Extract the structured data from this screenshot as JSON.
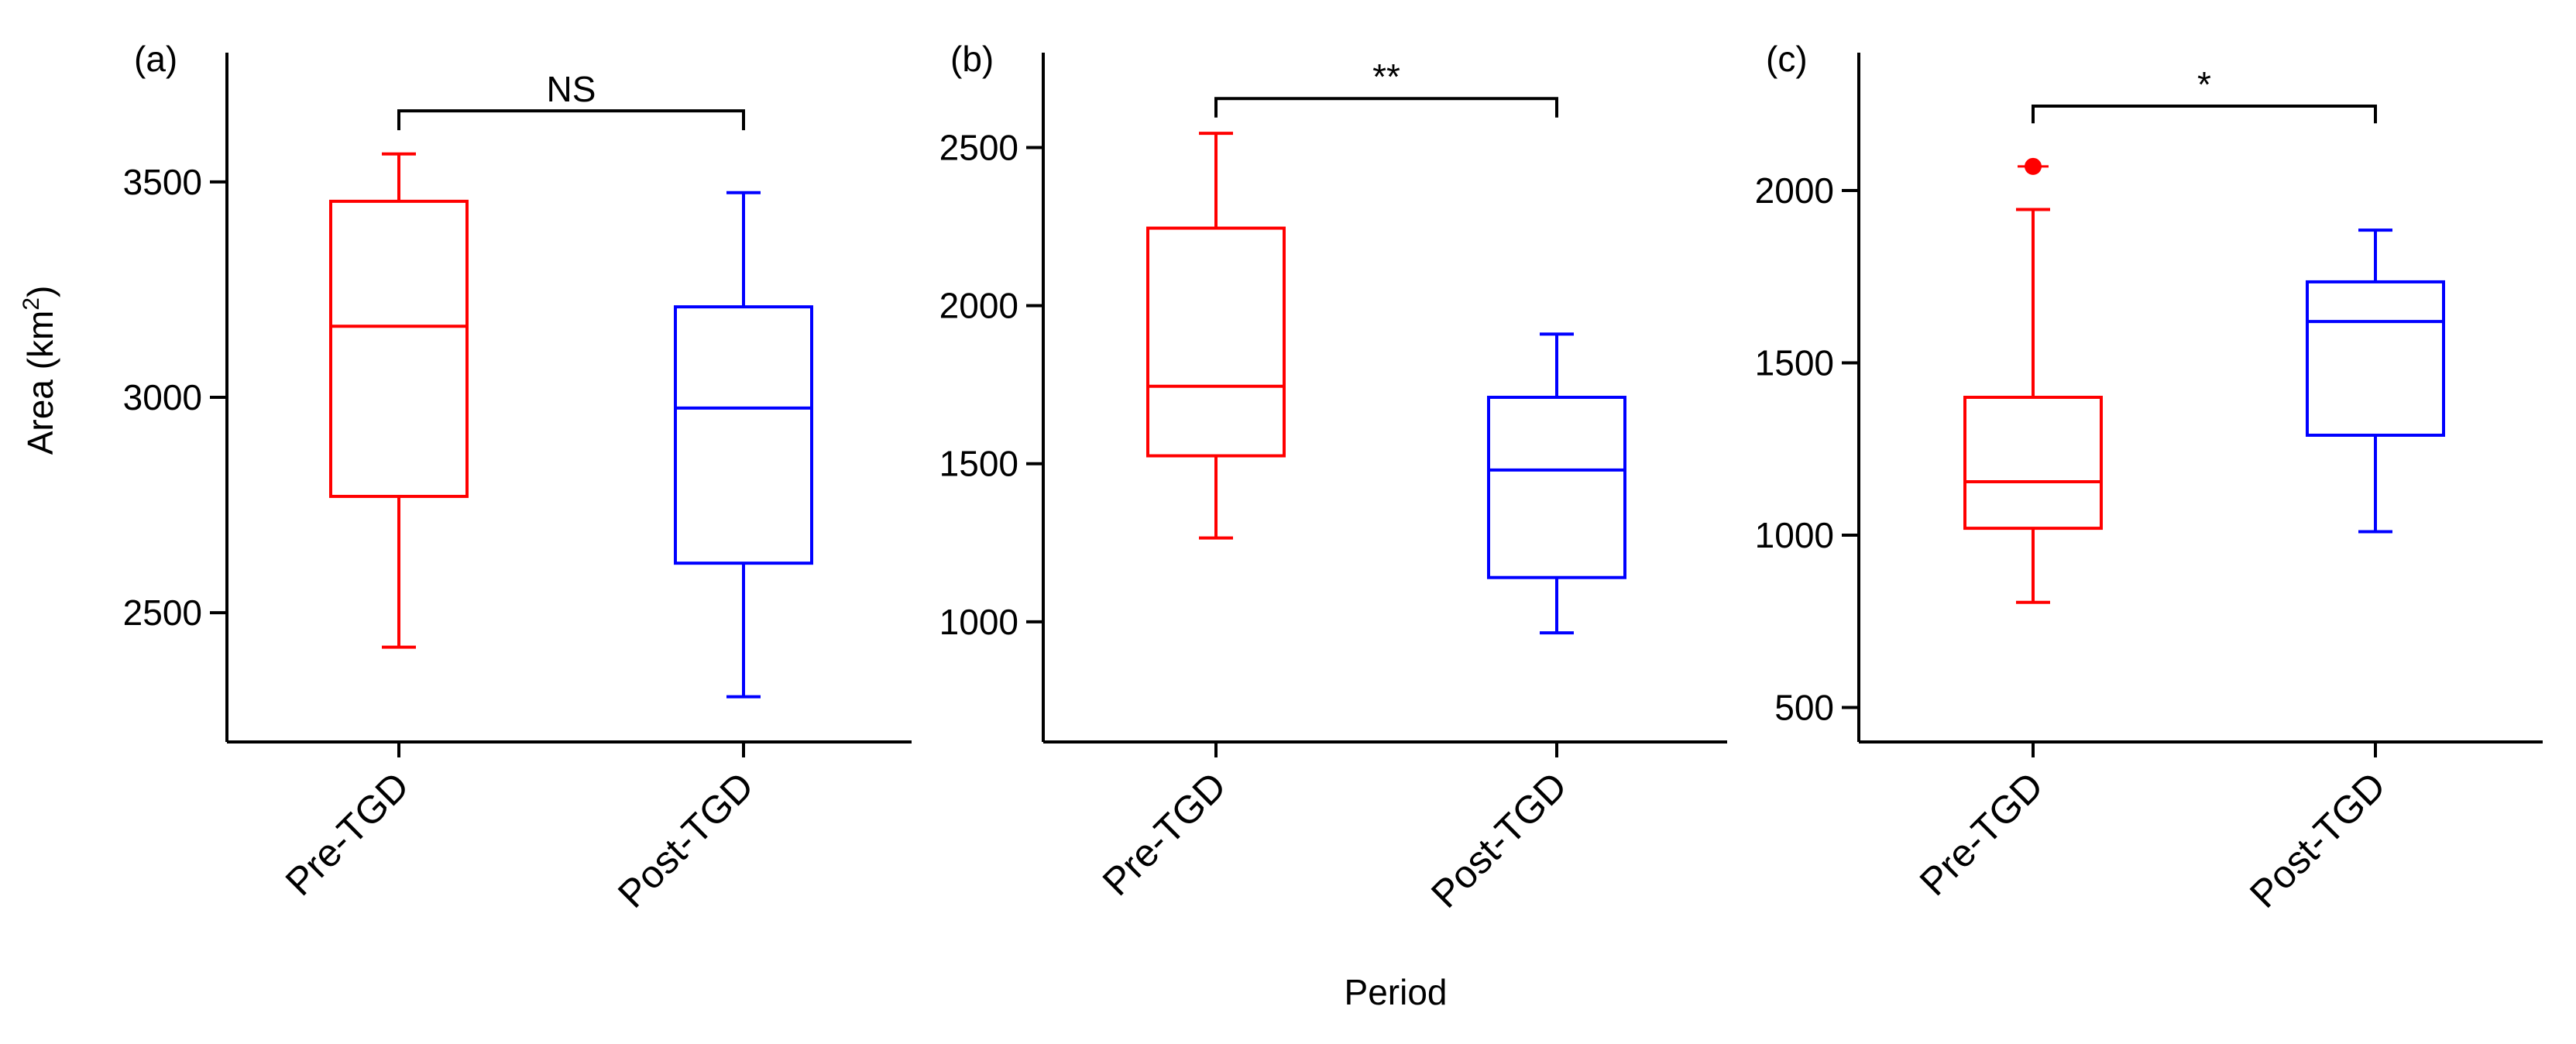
{
  "figure": {
    "ylabel": "Area (km",
    "ylabel_sup": "2",
    "ylabel_close": ")",
    "xlabel": "Period",
    "colors": {
      "pre": "#ff0000",
      "post": "#0000ff",
      "axis": "#000000"
    }
  },
  "chart_data": [
    {
      "type": "box",
      "panel": "(a)",
      "ylim": [
        2200,
        3800
      ],
      "yticks": [
        2500,
        3000,
        3500
      ],
      "ytick_labels": [
        "2500",
        "3000",
        "3500"
      ],
      "categories": [
        "Pre-TGD",
        "Post-TGD"
      ],
      "boxes": [
        {
          "name": "Pre-TGD",
          "color": "#ff0000",
          "whisker_low": 2420,
          "q1": 2770,
          "median": 3165,
          "q3": 3455,
          "whisker_high": 3565,
          "outliers": []
        },
        {
          "name": "Post-TGD",
          "color": "#0000ff",
          "whisker_low": 2305,
          "q1": 2615,
          "median": 2975,
          "q3": 3210,
          "whisker_high": 3475,
          "outliers": []
        }
      ],
      "significance": {
        "label": "NS",
        "level": 3665,
        "drop": 3620
      }
    },
    {
      "type": "box",
      "panel": "(b)",
      "ylim": [
        620,
        2800
      ],
      "yticks": [
        1000,
        1500,
        2000,
        2500
      ],
      "ytick_labels": [
        "1000",
        "1500",
        "2000",
        "2500"
      ],
      "categories": [
        "Pre-TGD",
        "Post-TGD"
      ],
      "boxes": [
        {
          "name": "Pre-TGD",
          "color": "#ff0000",
          "whisker_low": 1265,
          "q1": 1525,
          "median": 1745,
          "q3": 2245,
          "whisker_high": 2545,
          "outliers": []
        },
        {
          "name": "Post-TGD",
          "color": "#0000ff",
          "whisker_low": 965,
          "q1": 1140,
          "median": 1480,
          "q3": 1710,
          "whisker_high": 1910,
          "outliers": []
        }
      ],
      "significance": {
        "label": "**",
        "level": 2655,
        "drop": 2595
      }
    },
    {
      "type": "box",
      "panel": "(c)",
      "ylim": [
        400,
        2400
      ],
      "yticks": [
        500,
        1000,
        1500,
        2000
      ],
      "ytick_labels": [
        "500",
        "1000",
        "1500",
        "2000"
      ],
      "categories": [
        "Pre-TGD",
        "Post-TGD"
      ],
      "boxes": [
        {
          "name": "Pre-TGD",
          "color": "#ff0000",
          "whisker_low": 805,
          "q1": 1020,
          "median": 1155,
          "q3": 1400,
          "whisker_high": 1945,
          "outliers": [
            2070
          ]
        },
        {
          "name": "Post-TGD",
          "color": "#0000ff",
          "whisker_low": 1010,
          "q1": 1290,
          "median": 1620,
          "q3": 1735,
          "whisker_high": 1885,
          "outliers": []
        }
      ],
      "significance": {
        "label": "*",
        "level": 2245,
        "drop": 2195
      }
    }
  ]
}
